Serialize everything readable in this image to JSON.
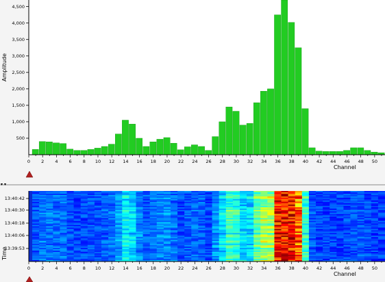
{
  "chart_data": [
    {
      "type": "bar",
      "xlabel": "Channel",
      "ylabel": "Amplitude",
      "ylim": [
        0,
        4700
      ],
      "xlim": [
        0,
        51.5
      ],
      "y_ticks": [
        "500",
        "1,000",
        "1,500",
        "2,000",
        "2,500",
        "3,000",
        "3,500",
        "4,000",
        "4,500"
      ],
      "x_ticks": [
        "0",
        "2",
        "4",
        "6",
        "8",
        "10",
        "12",
        "14",
        "16",
        "18",
        "20",
        "22",
        "24",
        "26",
        "28",
        "30",
        "32",
        "34",
        "36",
        "38",
        "40",
        "42",
        "44",
        "46",
        "48",
        "50"
      ],
      "bar_color": "#22cc22",
      "channels": [
        1,
        2,
        3,
        4,
        5,
        6,
        7,
        8,
        9,
        10,
        11,
        12,
        13,
        14,
        15,
        16,
        17,
        18,
        19,
        20,
        21,
        22,
        23,
        24,
        25,
        26,
        27,
        28,
        29,
        30,
        31,
        32,
        33,
        34,
        35,
        36,
        37,
        38,
        39,
        40,
        41,
        42,
        43,
        44,
        45,
        46,
        47,
        48,
        49,
        50,
        51
      ],
      "values": [
        160,
        400,
        390,
        360,
        340,
        170,
        130,
        130,
        160,
        200,
        250,
        320,
        630,
        1050,
        930,
        500,
        250,
        390,
        470,
        520,
        350,
        150,
        240,
        300,
        250,
        130,
        550,
        1000,
        1450,
        1320,
        900,
        950,
        1580,
        1930,
        2000,
        4250,
        4700,
        4020,
        3250,
        1400,
        210,
        110,
        100,
        100,
        100,
        130,
        210,
        210,
        130,
        80,
        60
      ]
    },
    {
      "type": "heatmap",
      "xlabel": "Channel",
      "ylabel": "Time",
      "xlim": [
        0,
        51.5
      ],
      "x_ticks": [
        "0",
        "2",
        "4",
        "6",
        "8",
        "10",
        "12",
        "14",
        "16",
        "18",
        "20",
        "22",
        "24",
        "26",
        "28",
        "30",
        "32",
        "34",
        "36",
        "38",
        "40",
        "42",
        "44",
        "46",
        "48",
        "50"
      ],
      "y_ticks": [
        "13:40:42",
        "13:40:30",
        "13:40:18",
        "13:40:06",
        "13:39:53"
      ],
      "colormap": "jet"
    }
  ]
}
